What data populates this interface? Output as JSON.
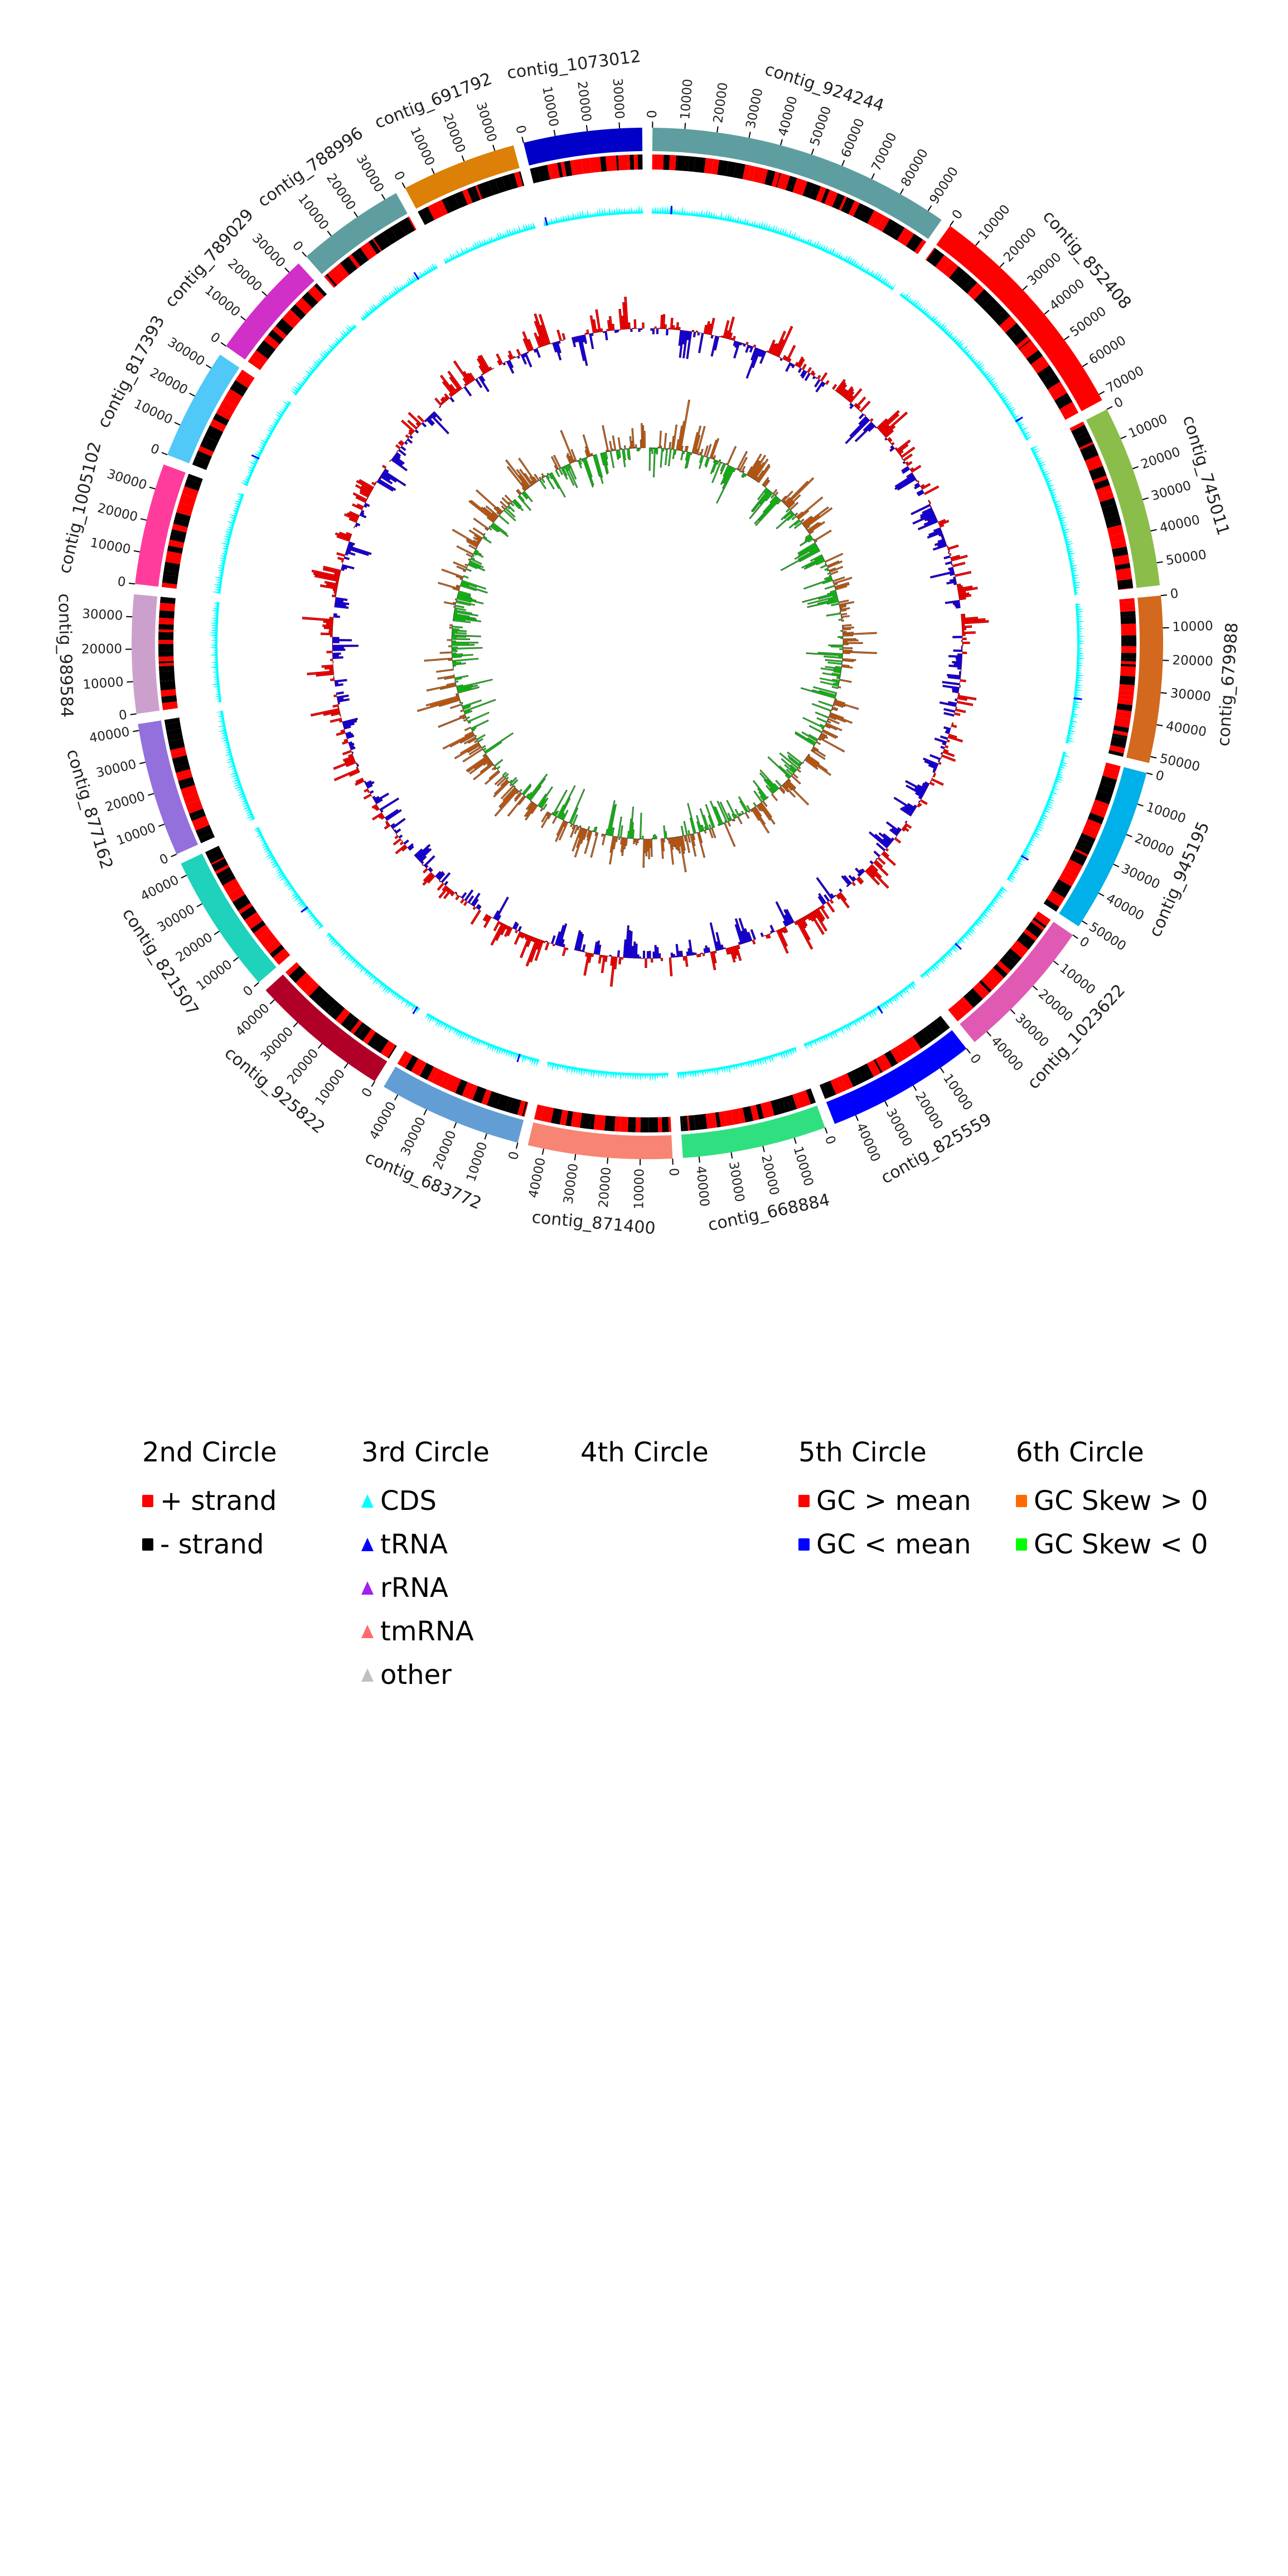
{
  "chart_data": {
    "type": "circos",
    "title": "",
    "tick_interval": 10000,
    "contigs": [
      {
        "name": "contig_924244",
        "length": 95000,
        "color": "#5f9ea0"
      },
      {
        "name": "contig_852408",
        "length": 72000,
        "color": "#ff0000"
      },
      {
        "name": "contig_745011",
        "length": 57000,
        "color": "#8bbd4a"
      },
      {
        "name": "contig_679988",
        "length": 52000,
        "color": "#d2691e"
      },
      {
        "name": "contig_945195",
        "length": 52000,
        "color": "#00b0e8"
      },
      {
        "name": "contig_1023622",
        "length": 45000,
        "color": "#e05ab4"
      },
      {
        "name": "contig_825559",
        "length": 47000,
        "color": "#0000ff"
      },
      {
        "name": "contig_668884",
        "length": 45000,
        "color": "#30e080"
      },
      {
        "name": "contig_871400",
        "length": 45000,
        "color": "#f88474"
      },
      {
        "name": "contig_683772",
        "length": 45000,
        "color": "#629ed4"
      },
      {
        "name": "contig_925822",
        "length": 44000,
        "color": "#b00028"
      },
      {
        "name": "contig_821507",
        "length": 44000,
        "color": "#1ed2bc"
      },
      {
        "name": "contig_877162",
        "length": 42000,
        "color": "#9470dc"
      },
      {
        "name": "contig_989584",
        "length": 37000,
        "color": "#cca0cc"
      },
      {
        "name": "contig_1005102",
        "length": 38000,
        "color": "#ff3c9c"
      },
      {
        "name": "contig_817393",
        "length": 35000,
        "color": "#50c8f8"
      },
      {
        "name": "contig_789029",
        "length": 34000,
        "color": "#d030c8"
      },
      {
        "name": "contig_788996",
        "length": 34000,
        "color": "#5f9ea0"
      },
      {
        "name": "contig_691792",
        "length": 36000,
        "color": "#dc8008"
      },
      {
        "name": "contig_1073012",
        "length": 37000,
        "color": "#0000c8"
      }
    ],
    "colors": {
      "plus_strand": "#ff0000",
      "minus_strand": "#000000",
      "cds": "#00ffff",
      "trna": "#0000ff",
      "rrna": "#a020f0",
      "tmrna": "#ff6a6a",
      "other": "#c0c0c0",
      "gc_high": "#ff0000",
      "gc_low": "#0000ff",
      "skew_pos": "#ff6a00",
      "skew_neg": "#00ff00"
    }
  },
  "legend": {
    "columns": [
      {
        "title": "2nd Circle",
        "items": [
          {
            "label": "+ strand",
            "shape": "square",
            "color": "#ff0000"
          },
          {
            "label": "- strand",
            "shape": "square",
            "color": "#000000"
          }
        ]
      },
      {
        "title": "3rd Circle",
        "items": [
          {
            "label": "CDS",
            "shape": "triangle",
            "color": "#00ffff"
          },
          {
            "label": "tRNA",
            "shape": "triangle",
            "color": "#0000ff"
          },
          {
            "label": "rRNA",
            "shape": "triangle",
            "color": "#a020f0"
          },
          {
            "label": "tmRNA",
            "shape": "triangle",
            "color": "#ff6a6a"
          },
          {
            "label": "other",
            "shape": "triangle",
            "color": "#c0c0c0"
          }
        ]
      },
      {
        "title": "4th Circle",
        "items": []
      },
      {
        "title": "5th Circle",
        "items": [
          {
            "label": "GC > mean",
            "shape": "square",
            "color": "#ff0000"
          },
          {
            "label": "GC < mean",
            "shape": "square",
            "color": "#0000ff"
          }
        ]
      },
      {
        "title": "6th Circle",
        "items": [
          {
            "label": "GC Skew > 0",
            "shape": "square",
            "color": "#ff6a00"
          },
          {
            "label": "GC Skew < 0",
            "shape": "square",
            "color": "#00ff00"
          }
        ]
      }
    ]
  }
}
